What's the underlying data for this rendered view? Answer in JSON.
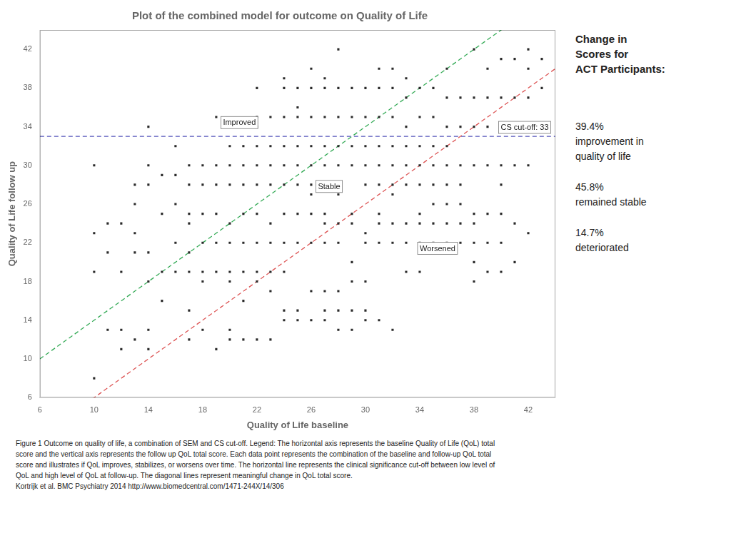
{
  "chart_data": {
    "type": "scatter",
    "title": "Plot of the combined model for outcome on Quality of Life",
    "x_label": "Quality of Life baseline",
    "y_label": "Quality of Life follow up",
    "xlim": [
      6,
      44
    ],
    "ylim": [
      6,
      44
    ],
    "xticks": [
      6,
      10,
      14,
      18,
      22,
      26,
      30,
      34,
      38,
      42
    ],
    "yticks": [
      6,
      10,
      14,
      18,
      22,
      26,
      30,
      34,
      38,
      42
    ],
    "grid": false,
    "color": "#2a2a2a",
    "marker": "square",
    "x": [
      10,
      10,
      10,
      10,
      11,
      11,
      11,
      12,
      12,
      12,
      12,
      13,
      13,
      13,
      13,
      13,
      14,
      14,
      14,
      14,
      14,
      14,
      14,
      15,
      15,
      15,
      15,
      16,
      16,
      16,
      16,
      16,
      17,
      17,
      17,
      17,
      17,
      17,
      17,
      17,
      18,
      18,
      18,
      18,
      18,
      18,
      18,
      19,
      19,
      19,
      19,
      19,
      19,
      19,
      20,
      20,
      20,
      20,
      20,
      20,
      20,
      20,
      21,
      21,
      21,
      21,
      21,
      21,
      21,
      22,
      22,
      22,
      22,
      22,
      22,
      22,
      22,
      22,
      22,
      23,
      23,
      23,
      23,
      23,
      23,
      23,
      24,
      24,
      24,
      24,
      24,
      24,
      24,
      24,
      24,
      25,
      25,
      25,
      25,
      25,
      25,
      25,
      25,
      26,
      26,
      26,
      26,
      26,
      26,
      26,
      26,
      26,
      27,
      27,
      27,
      27,
      27,
      27,
      27,
      27,
      27,
      28,
      28,
      28,
      28,
      28,
      28,
      28,
      28,
      28,
      28,
      28,
      29,
      29,
      29,
      29,
      29,
      29,
      29,
      29,
      29,
      29,
      30,
      30,
      30,
      30,
      30,
      30,
      30,
      30,
      30,
      30,
      31,
      31,
      31,
      31,
      31,
      31,
      31,
      31,
      31,
      31,
      32,
      32,
      32,
      32,
      32,
      32,
      32,
      32,
      32,
      32,
      33,
      33,
      33,
      33,
      33,
      33,
      33,
      33,
      33,
      34,
      34,
      34,
      34,
      34,
      34,
      34,
      34,
      34,
      35,
      35,
      35,
      35,
      35,
      35,
      35,
      35,
      36,
      36,
      36,
      36,
      36,
      36,
      36,
      36,
      36,
      37,
      37,
      37,
      37,
      37,
      37,
      37,
      38,
      38,
      38,
      38,
      38,
      38,
      38,
      38,
      38,
      39,
      39,
      39,
      39,
      39,
      39,
      39,
      40,
      40,
      40,
      40,
      40,
      40,
      40,
      40,
      41,
      41,
      41,
      41,
      41,
      41,
      42,
      42,
      42,
      42,
      42,
      42,
      43,
      43,
      43,
      20,
      21,
      22,
      23,
      23,
      24,
      24,
      25,
      25,
      26,
      26,
      27,
      27,
      27
    ],
    "values": [
      8,
      19,
      23,
      30,
      13,
      21,
      24,
      11,
      13,
      19,
      24,
      12,
      21,
      23,
      26,
      28,
      11,
      13,
      18,
      21,
      28,
      30,
      34,
      16,
      19,
      25,
      29,
      19,
      22,
      26,
      29,
      32,
      12,
      15,
      19,
      21,
      24,
      25,
      28,
      30,
      13,
      18,
      19,
      22,
      25,
      28,
      30,
      11,
      19,
      22,
      25,
      28,
      30,
      35,
      13,
      18,
      19,
      22,
      24,
      28,
      30,
      32,
      16,
      19,
      22,
      25,
      28,
      30,
      32,
      18,
      19,
      22,
      25,
      28,
      30,
      32,
      34,
      35,
      38,
      19,
      22,
      24,
      28,
      30,
      32,
      35,
      19,
      22,
      25,
      28,
      30,
      32,
      35,
      38,
      39,
      22,
      25,
      28,
      30,
      32,
      35,
      36,
      38,
      22,
      25,
      27,
      28,
      30,
      32,
      35,
      38,
      40,
      22,
      24,
      25,
      28,
      30,
      32,
      35,
      38,
      39,
      13,
      15,
      17,
      22,
      24,
      27,
      30,
      32,
      35,
      38,
      42,
      13,
      15,
      18,
      20,
      24,
      25,
      30,
      32,
      35,
      38,
      14,
      15,
      18,
      22,
      23,
      28,
      30,
      32,
      35,
      38,
      14,
      22,
      24,
      25,
      28,
      30,
      32,
      35,
      38,
      40,
      13,
      22,
      24,
      27,
      28,
      30,
      32,
      35,
      38,
      40,
      19,
      22,
      24,
      28,
      30,
      32,
      34,
      37,
      39,
      19,
      22,
      24,
      25,
      28,
      30,
      32,
      35,
      38,
      22,
      24,
      26,
      28,
      30,
      32,
      35,
      38,
      22,
      24,
      26,
      28,
      30,
      32,
      34,
      37,
      40,
      22,
      24,
      26,
      28,
      30,
      34,
      37,
      18,
      20,
      22,
      24,
      25,
      30,
      34,
      37,
      42,
      19,
      22,
      25,
      30,
      34,
      37,
      40,
      19,
      22,
      25,
      28,
      30,
      34,
      37,
      41,
      20,
      24,
      30,
      34,
      37,
      41,
      23,
      30,
      34,
      37,
      40,
      42,
      34,
      38,
      41,
      12,
      12,
      12,
      12,
      17,
      14,
      15,
      14,
      15,
      14,
      17,
      14,
      15,
      17
    ],
    "hlines": [
      {
        "y": 33,
        "color": "#5555bb",
        "line_style": "dashed"
      }
    ],
    "diagonal_lines": [
      {
        "slope": 1,
        "offset": 4,
        "color": "#33aa55",
        "line_style": "dashed"
      },
      {
        "slope": 1,
        "offset": -4,
        "color": "#dd5555",
        "line_style": "dashed"
      }
    ],
    "annotations": [
      {
        "text": "Improved",
        "x": 19.5,
        "y": 33.8,
        "align": "left"
      },
      {
        "text": "Stable",
        "x": 26.5,
        "y": 27.2,
        "align": "left"
      },
      {
        "text": "Worsened",
        "x": 34.0,
        "y": 20.8,
        "align": "left"
      },
      {
        "text": "CS cut-off: 33",
        "x": 43.5,
        "y": 33.3,
        "align": "right"
      }
    ],
    "caption": [
      "Figure 1 Outcome on quality of life, a combination of SEM and CS cut-off. Legend: The horizontal axis represents the baseline Quality of Life (QoL) total",
      "score and the vertical axis represents the follow up QoL total score. Each data point represents the combination of the baseline and follow-up QoL total",
      "score and illustrates if QoL improves, stabilizes, or worsens over time. The horizontal line represents the clinical significance cut-off between low level of",
      "QoL and high level of QoL at follow-up. The diagonal lines represent meaningful change in QoL total score.",
      "Kortrijk et al.      BMC Psychiatry 2014              http://www.biomedcentral.com/1471-244X/14/306"
    ],
    "side_title": "Change in\nScores for\nACT Participants:",
    "side_texts": [
      "39.4%\nimprovement in\nquality of life",
      "45.8%\nremained stable",
      "14.7%\ndeteriorated"
    ]
  }
}
